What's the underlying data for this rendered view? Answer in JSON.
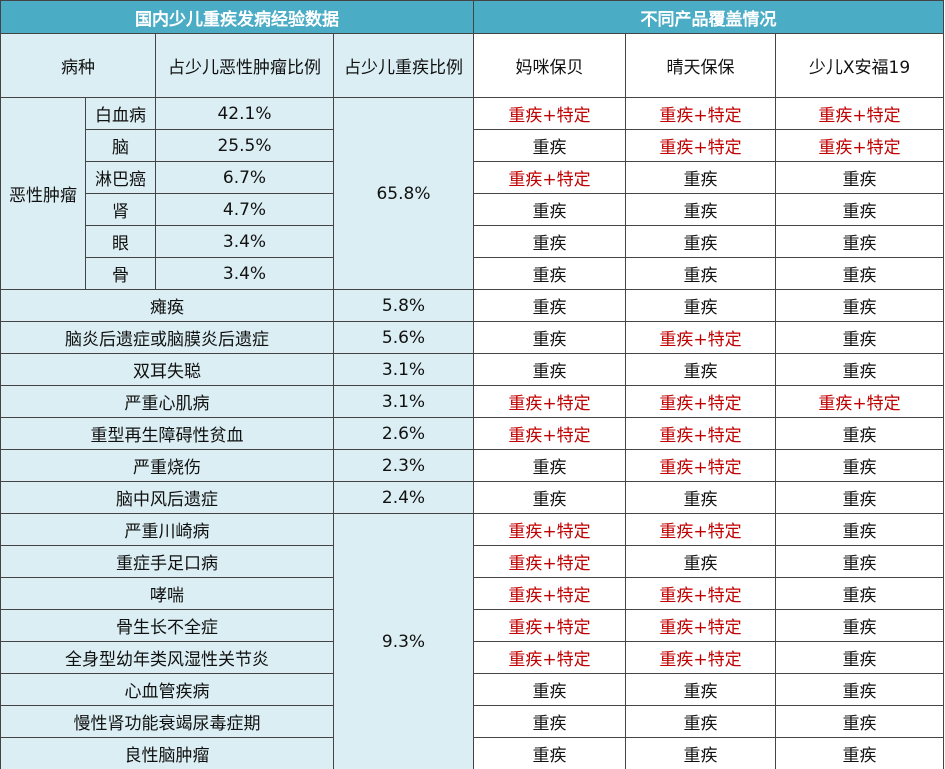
{
  "table": {
    "title_left": "国内少儿重疾发病经验数据",
    "title_right": "不同产品覆盖情况",
    "headers": {
      "disease": "病种",
      "tumor_share": "占少儿恶性肿瘤比例",
      "share": "占少儿重疾比例",
      "products": [
        "妈咪保贝",
        "晴天保保",
        "少儿X安福19"
      ]
    },
    "tumor": {
      "label": "恶性肿瘤",
      "share": "65.8%",
      "rows": [
        {
          "name": "白血病",
          "tumor_share": "42.1%",
          "coverage": [
            {
              "text": "重疾+特定",
              "color": "#c00000"
            },
            {
              "text": "重疾+特定",
              "color": "#c00000"
            },
            {
              "text": "重疾+特定",
              "color": "#c00000"
            }
          ]
        },
        {
          "name": "脑",
          "tumor_share": "25.5%",
          "coverage": [
            {
              "text": "重疾",
              "color": "#111111"
            },
            {
              "text": "重疾+特定",
              "color": "#c00000"
            },
            {
              "text": "重疾+特定",
              "color": "#c00000"
            }
          ]
        },
        {
          "name": "淋巴癌",
          "tumor_share": "6.7%",
          "coverage": [
            {
              "text": "重疾+特定",
              "color": "#c00000"
            },
            {
              "text": "重疾",
              "color": "#111111"
            },
            {
              "text": "重疾",
              "color": "#111111"
            }
          ]
        },
        {
          "name": "肾",
          "tumor_share": "4.7%",
          "coverage": [
            {
              "text": "重疾",
              "color": "#111111"
            },
            {
              "text": "重疾",
              "color": "#111111"
            },
            {
              "text": "重疾",
              "color": "#111111"
            }
          ]
        },
        {
          "name": "眼",
          "tumor_share": "3.4%",
          "coverage": [
            {
              "text": "重疾",
              "color": "#111111"
            },
            {
              "text": "重疾",
              "color": "#111111"
            },
            {
              "text": "重疾",
              "color": "#111111"
            }
          ]
        },
        {
          "name": "骨",
          "tumor_share": "3.4%",
          "coverage": [
            {
              "text": "重疾",
              "color": "#111111"
            },
            {
              "text": "重疾",
              "color": "#111111"
            },
            {
              "text": "重疾",
              "color": "#111111"
            }
          ]
        }
      ]
    },
    "singles": [
      {
        "name": "瘫痪",
        "share": "5.8%",
        "coverage": [
          {
            "text": "重疾",
            "color": "#111111"
          },
          {
            "text": "重疾",
            "color": "#111111"
          },
          {
            "text": "重疾",
            "color": "#111111"
          }
        ]
      },
      {
        "name": "脑炎后遗症或脑膜炎后遗症",
        "share": "5.6%",
        "coverage": [
          {
            "text": "重疾",
            "color": "#111111"
          },
          {
            "text": "重疾+特定",
            "color": "#c00000"
          },
          {
            "text": "重疾",
            "color": "#111111"
          }
        ]
      },
      {
        "name": "双耳失聪",
        "share": "3.1%",
        "coverage": [
          {
            "text": "重疾",
            "color": "#111111"
          },
          {
            "text": "重疾",
            "color": "#111111"
          },
          {
            "text": "重疾",
            "color": "#111111"
          }
        ]
      },
      {
        "name": "严重心肌病",
        "share": "3.1%",
        "coverage": [
          {
            "text": "重疾+特定",
            "color": "#c00000"
          },
          {
            "text": "重疾+特定",
            "color": "#c00000"
          },
          {
            "text": "重疾+特定",
            "color": "#c00000"
          }
        ]
      },
      {
        "name": "重型再生障碍性贫血",
        "share": "2.6%",
        "coverage": [
          {
            "text": "重疾+特定",
            "color": "#c00000"
          },
          {
            "text": "重疾+特定",
            "color": "#c00000"
          },
          {
            "text": "重疾",
            "color": "#111111"
          }
        ]
      },
      {
        "name": "严重烧伤",
        "share": "2.3%",
        "coverage": [
          {
            "text": "重疾",
            "color": "#111111"
          },
          {
            "text": "重疾+特定",
            "color": "#c00000"
          },
          {
            "text": "重疾",
            "color": "#111111"
          }
        ]
      },
      {
        "name": "脑中风后遗症",
        "share": "2.4%",
        "coverage": [
          {
            "text": "重疾",
            "color": "#111111"
          },
          {
            "text": "重疾",
            "color": "#111111"
          },
          {
            "text": "重疾",
            "color": "#111111"
          }
        ]
      }
    ],
    "others": {
      "share": "9.3%",
      "rows": [
        {
          "name": "严重川崎病",
          "coverage": [
            {
              "text": "重疾+特定",
              "color": "#c00000"
            },
            {
              "text": "重疾+特定",
              "color": "#c00000"
            },
            {
              "text": "重疾",
              "color": "#111111"
            }
          ]
        },
        {
          "name": "重症手足口病",
          "coverage": [
            {
              "text": "重疾+特定",
              "color": "#c00000"
            },
            {
              "text": "重疾",
              "color": "#111111"
            },
            {
              "text": "重疾",
              "color": "#111111"
            }
          ]
        },
        {
          "name": "哮喘",
          "coverage": [
            {
              "text": "重疾+特定",
              "color": "#c00000"
            },
            {
              "text": "重疾+特定",
              "color": "#c00000"
            },
            {
              "text": "重疾",
              "color": "#111111"
            }
          ]
        },
        {
          "name": "骨生长不全症",
          "coverage": [
            {
              "text": "重疾+特定",
              "color": "#c00000"
            },
            {
              "text": "重疾+特定",
              "color": "#c00000"
            },
            {
              "text": "重疾",
              "color": "#111111"
            }
          ]
        },
        {
          "name": "全身型幼年类风湿性关节炎",
          "coverage": [
            {
              "text": "重疾+特定",
              "color": "#c00000"
            },
            {
              "text": "重疾+特定",
              "color": "#c00000"
            },
            {
              "text": "重疾",
              "color": "#111111"
            }
          ]
        },
        {
          "name": "心血管疾病",
          "coverage": [
            {
              "text": "重疾",
              "color": "#111111"
            },
            {
              "text": "重疾",
              "color": "#111111"
            },
            {
              "text": "重疾",
              "color": "#111111"
            }
          ]
        },
        {
          "name": "慢性肾功能衰竭尿毒症期",
          "coverage": [
            {
              "text": "重疾",
              "color": "#111111"
            },
            {
              "text": "重疾",
              "color": "#111111"
            },
            {
              "text": "重疾",
              "color": "#111111"
            }
          ]
        },
        {
          "name": "良性脑肿瘤",
          "coverage": [
            {
              "text": "重疾",
              "color": "#111111"
            },
            {
              "text": "重疾",
              "color": "#111111"
            },
            {
              "text": "重疾",
              "color": "#111111"
            }
          ]
        }
      ]
    }
  }
}
